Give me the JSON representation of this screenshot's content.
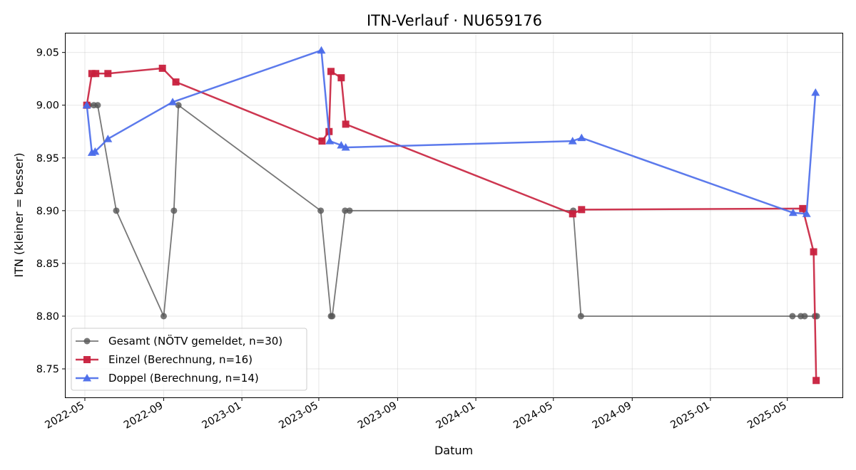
{
  "chart_data": {
    "type": "line",
    "title": "ITN-Verlauf · NU659176",
    "xlabel": "Datum",
    "ylabel": "ITN  (kleiner = besser)",
    "xlim": [
      "2022-04-01",
      "2025-07-26"
    ],
    "ylim": [
      8.723,
      9.068
    ],
    "grid": true,
    "legend_position": "lower-left",
    "x_ticks": [
      "2022-05",
      "2022-09",
      "2023-01",
      "2023-05",
      "2023-09",
      "2024-01",
      "2024-05",
      "2024-09",
      "2025-01",
      "2025-05"
    ],
    "y_ticks": [
      "8.75",
      "8.80",
      "8.85",
      "8.90",
      "8.95",
      "9.00",
      "9.05"
    ],
    "series": [
      {
        "name": "Gesamt (NÖTV gemeldet, n=30)",
        "color": "#555555",
        "marker": "circle",
        "points": [
          [
            "2022-05-07",
            9.0
          ],
          [
            "2022-05-15",
            9.0
          ],
          [
            "2022-05-21",
            9.0
          ],
          [
            "2022-06-19",
            8.9
          ],
          [
            "2022-09-01",
            8.8
          ],
          [
            "2022-09-17",
            8.9
          ],
          [
            "2022-09-24",
            9.0
          ],
          [
            "2023-05-04",
            8.9
          ],
          [
            "2023-05-20",
            8.8
          ],
          [
            "2023-05-22",
            8.8
          ],
          [
            "2023-06-11",
            8.9
          ],
          [
            "2023-06-18",
            8.9
          ],
          [
            "2024-06-01",
            8.9
          ],
          [
            "2024-06-13",
            8.8
          ],
          [
            "2025-05-09",
            8.8
          ],
          [
            "2025-05-22",
            8.8
          ],
          [
            "2025-05-28",
            8.8
          ],
          [
            "2025-06-13",
            8.8
          ],
          [
            "2025-06-16",
            8.8
          ]
        ]
      },
      {
        "name": "Einzel (Berechnung, n=16)",
        "color": "#c8203d",
        "marker": "square",
        "points": [
          [
            "2022-05-04",
            9.0
          ],
          [
            "2022-05-12",
            9.03
          ],
          [
            "2022-05-18",
            9.03
          ],
          [
            "2022-06-06",
            9.03
          ],
          [
            "2022-08-30",
            9.035
          ],
          [
            "2022-09-20",
            9.022
          ],
          [
            "2023-05-06",
            8.966
          ],
          [
            "2023-05-17",
            8.975
          ],
          [
            "2023-05-20",
            9.032
          ],
          [
            "2023-06-05",
            9.026
          ],
          [
            "2023-06-12",
            8.982
          ],
          [
            "2024-05-31",
            8.897
          ],
          [
            "2024-06-14",
            8.901
          ],
          [
            "2025-05-25",
            8.902
          ],
          [
            "2025-06-11",
            8.861
          ],
          [
            "2025-06-15",
            8.739
          ]
        ]
      },
      {
        "name": "Doppel (Berechnung, n=14)",
        "color": "#4a6bea",
        "marker": "triangle",
        "points": [
          [
            "2022-05-04",
            9.0
          ],
          [
            "2022-05-12",
            8.955
          ],
          [
            "2022-05-17",
            8.956
          ],
          [
            "2022-06-06",
            8.968
          ],
          [
            "2022-09-15",
            9.003
          ],
          [
            "2023-05-05",
            9.052
          ],
          [
            "2023-05-18",
            8.966
          ],
          [
            "2023-06-05",
            8.962
          ],
          [
            "2023-06-12",
            8.96
          ],
          [
            "2024-05-31",
            8.966
          ],
          [
            "2024-06-14",
            8.969
          ],
          [
            "2025-05-10",
            8.898
          ],
          [
            "2025-05-31",
            8.897
          ],
          [
            "2025-06-14",
            9.012
          ]
        ]
      }
    ]
  }
}
